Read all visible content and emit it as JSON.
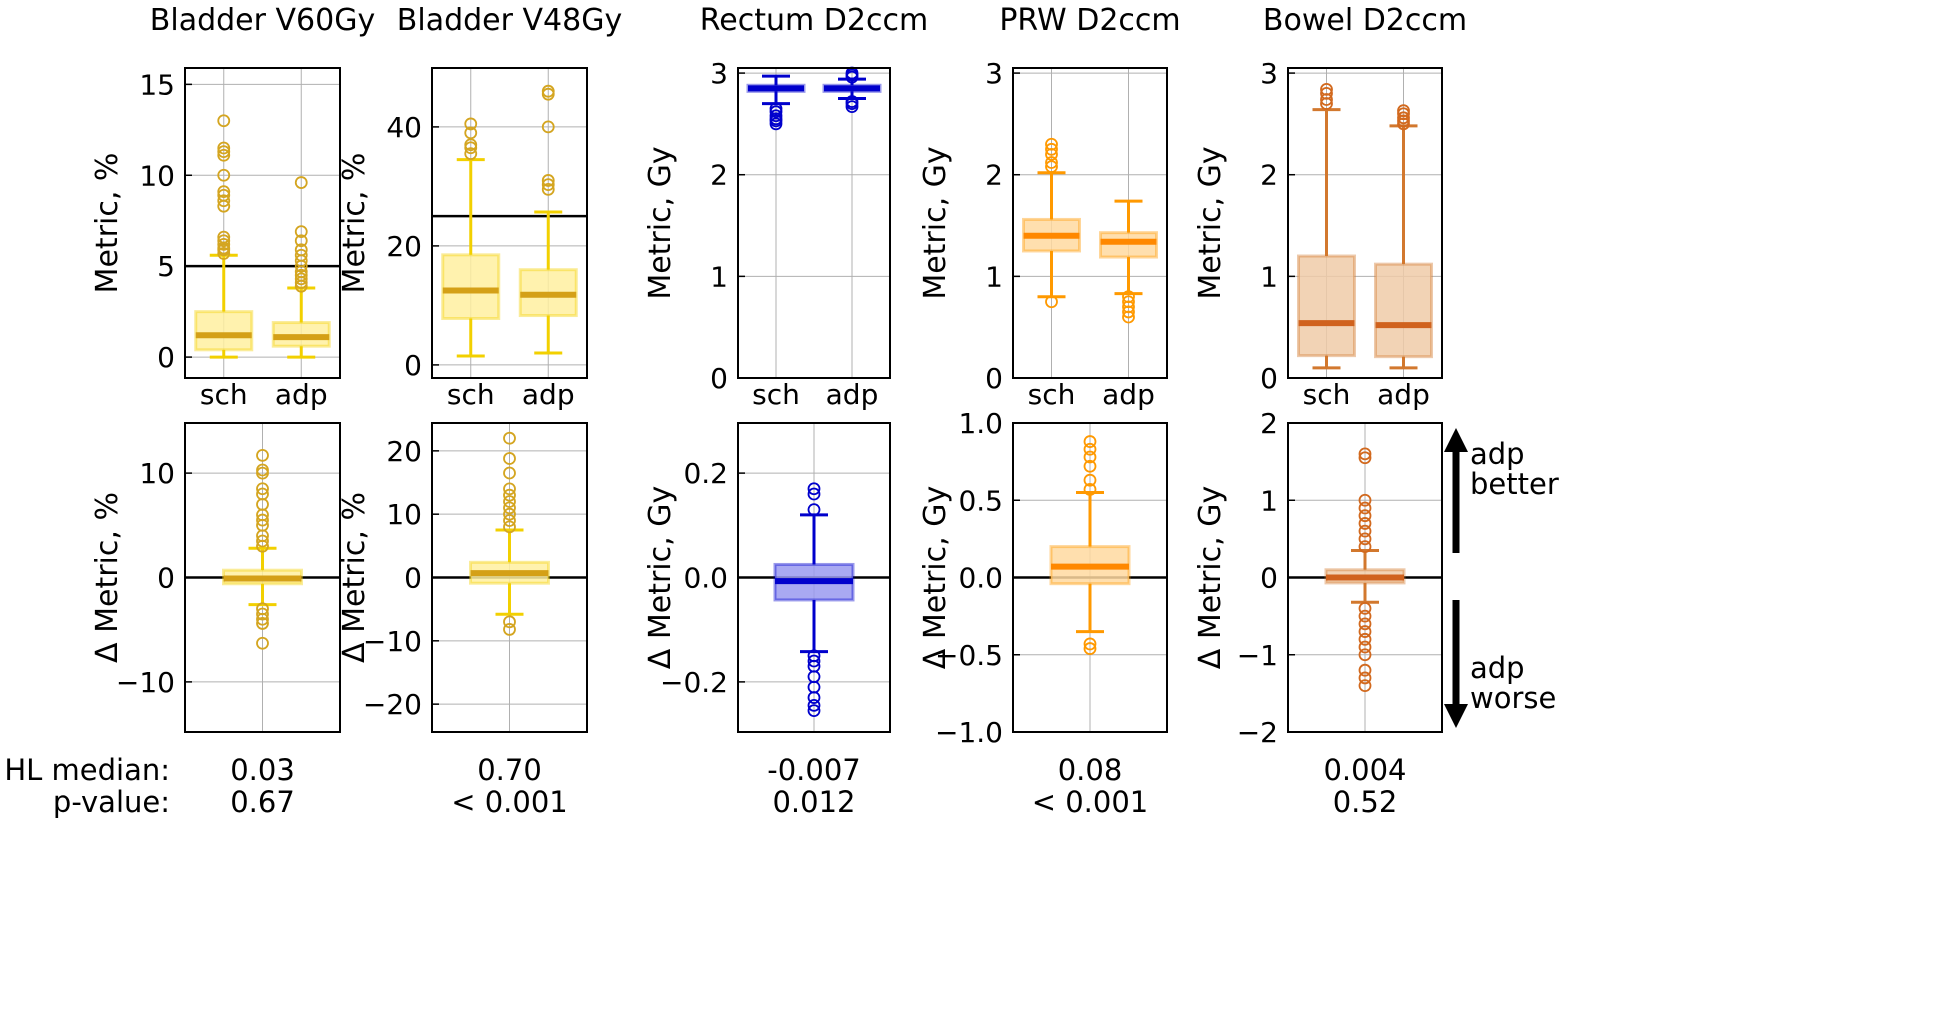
{
  "chart_data": [
    {
      "type": "box",
      "title": "Bladder V60Gy",
      "colors": {
        "line": "#f2d000",
        "fill": "#fff0a0",
        "median": "#d4a017",
        "flier": "#d4a520"
      },
      "top": {
        "ylabel": "Metric, %",
        "ylim": [
          -1.15,
          15.9
        ],
        "yticks": [
          0,
          5,
          10,
          15
        ],
        "threshold": 5,
        "categories": [
          "sch",
          "adp"
        ],
        "boxes": [
          {
            "whislo": 0,
            "q1": 0.4,
            "med": 1.2,
            "q3": 2.5,
            "whishi": 5.6,
            "fliers": [
              5.7,
              5.9,
              6.0,
              6.2,
              6.4,
              6.6,
              8.3,
              8.6,
              8.9,
              9.1,
              10,
              11.1,
              11.3,
              11.5,
              13
            ]
          },
          {
            "whislo": 0,
            "q1": 0.6,
            "med": 1.1,
            "q3": 1.9,
            "whishi": 3.8,
            "fliers": [
              3.9,
              4.1,
              4.3,
              4.5,
              4.7,
              5.0,
              5.3,
              5.6,
              5.9,
              6.4,
              6.9,
              9.6
            ]
          }
        ]
      },
      "bottom": {
        "ylabel": "Δ Metric, %",
        "ylim": [
          -14.8,
          14.8
        ],
        "yticks": [
          -10,
          0,
          10
        ],
        "box": {
          "whislo": -2.6,
          "q1": -0.6,
          "med": -0.1,
          "q3": 0.7,
          "whishi": 2.8,
          "fliers": [
            3,
            3.5,
            4,
            5,
            5.5,
            6,
            7,
            8,
            8.5,
            10,
            10.3,
            11.7,
            -3,
            -3.5,
            -4,
            -4.4,
            -6.3
          ]
        }
      },
      "hl_median": "0.03",
      "p_value": "0.67"
    },
    {
      "type": "box",
      "title": "Bladder V48Gy",
      "colors": {
        "line": "#f2d000",
        "fill": "#fff0a0",
        "median": "#d4a017",
        "flier": "#d4a520"
      },
      "top": {
        "ylabel": "Metric, %",
        "ylim": [
          -2.2,
          49.9
        ],
        "yticks": [
          0,
          20,
          40
        ],
        "threshold": 25,
        "categories": [
          "sch",
          "adp"
        ],
        "boxes": [
          {
            "whislo": 1.5,
            "q1": 7.8,
            "med": 12.5,
            "q3": 18.5,
            "whishi": 34.5,
            "fliers": [
              35.5,
              36.5,
              37,
              39,
              40.5
            ]
          },
          {
            "whislo": 2,
            "q1": 8.3,
            "med": 11.8,
            "q3": 16,
            "whishi": 25.7,
            "fliers": [
              29.5,
              30.3,
              31,
              40,
              45.5,
              46
            ]
          }
        ]
      },
      "bottom": {
        "ylabel": "Δ Metric, %",
        "ylim": [
          -24.4,
          24.4
        ],
        "yticks": [
          -20,
          -10,
          0,
          10,
          20
        ],
        "box": {
          "whislo": -5.8,
          "q1": -0.9,
          "med": 0.7,
          "q3": 2.4,
          "whishi": 7.5,
          "fliers": [
            8,
            9,
            10,
            11,
            12,
            13,
            14,
            16.5,
            18.8,
            22,
            -7,
            -8.2
          ]
        }
      },
      "hl_median": "0.70",
      "p_value": "< 0.001"
    },
    {
      "type": "box",
      "title": "Rectum D2ccm",
      "colors": {
        "line": "#0000cc",
        "fill": "#9a9af0",
        "median": "#0000cc",
        "flier": "#0000cc"
      },
      "top": {
        "ylabel": "Metric, Gy",
        "ylim": [
          0,
          3.05
        ],
        "yticks": [
          0,
          1,
          2,
          3
        ],
        "threshold": null,
        "categories": [
          "sch",
          "adp"
        ],
        "boxes": [
          {
            "whislo": 2.7,
            "q1": 2.82,
            "med": 2.85,
            "q3": 2.88,
            "whishi": 2.97,
            "fliers": [
              2.5,
              2.53,
              2.55,
              2.58,
              2.62,
              2.65
            ]
          },
          {
            "whislo": 2.75,
            "q1": 2.82,
            "med": 2.85,
            "q3": 2.88,
            "whishi": 2.94,
            "fliers": [
              2.67,
              2.7,
              2.72,
              2.96,
              2.98,
              3.0
            ]
          }
        ]
      },
      "bottom": {
        "ylabel": "Δ Metric, Gy",
        "ylim": [
          -0.296,
          0.296
        ],
        "yticks": [
          -0.2,
          0.0,
          0.2
        ],
        "box": {
          "whislo": -0.142,
          "q1": -0.043,
          "med": -0.007,
          "q3": 0.025,
          "whishi": 0.12,
          "fliers": [
            0.13,
            0.16,
            0.17,
            -0.15,
            -0.16,
            -0.17,
            -0.19,
            -0.21,
            -0.23,
            -0.245,
            -0.255
          ]
        }
      },
      "hl_median": "-0.007",
      "p_value": "0.012"
    },
    {
      "type": "box",
      "title": "PRW D2ccm",
      "colors": {
        "line": "#ff9900",
        "fill": "#ffd9a0",
        "median": "#ff8800",
        "flier": "#ff9900"
      },
      "top": {
        "ylabel": "Metric, Gy",
        "ylim": [
          0,
          3.05
        ],
        "yticks": [
          0,
          1,
          2,
          3
        ],
        "threshold": null,
        "categories": [
          "sch",
          "adp"
        ],
        "boxes": [
          {
            "whislo": 0.8,
            "q1": 1.25,
            "med": 1.4,
            "q3": 1.56,
            "whishi": 2.02,
            "fliers": [
              0.75,
              2.08,
              2.12,
              2.2,
              2.25,
              2.3
            ]
          },
          {
            "whislo": 0.83,
            "q1": 1.19,
            "med": 1.34,
            "q3": 1.43,
            "whishi": 1.74,
            "fliers": [
              0.6,
              0.65,
              0.7,
              0.75,
              0.8
            ]
          }
        ]
      },
      "bottom": {
        "ylabel": "Δ Metric, Gy",
        "ylim": [
          -1,
          1
        ],
        "yticks": [
          -1.0,
          -0.5,
          0.0,
          0.5,
          1.0
        ],
        "box": {
          "whislo": -0.35,
          "q1": -0.04,
          "med": 0.07,
          "q3": 0.2,
          "whishi": 0.55,
          "fliers": [
            0.57,
            0.63,
            0.72,
            0.78,
            0.83,
            0.88,
            -0.43,
            -0.46
          ]
        }
      },
      "hl_median": "0.08",
      "p_value": "< 0.001"
    },
    {
      "type": "box",
      "title": "Bowel D2ccm",
      "colors": {
        "line": "#d2782e",
        "fill": "#f0cba8",
        "median": "#d0621e",
        "flier": "#d2691e"
      },
      "top": {
        "ylabel": "Metric, Gy",
        "ylim": [
          0,
          3.05
        ],
        "yticks": [
          0,
          1,
          2,
          3
        ],
        "threshold": null,
        "categories": [
          "sch",
          "adp"
        ],
        "boxes": [
          {
            "whislo": 0.1,
            "q1": 0.22,
            "med": 0.54,
            "q3": 1.2,
            "whishi": 2.64,
            "fliers": [
              2.7,
              2.74,
              2.8,
              2.84
            ]
          },
          {
            "whislo": 0.1,
            "q1": 0.21,
            "med": 0.52,
            "q3": 1.12,
            "whishi": 2.48,
            "fliers": [
              2.5,
              2.53,
              2.56,
              2.6,
              2.63
            ]
          }
        ]
      },
      "bottom": {
        "ylabel": "Δ Metric, Gy",
        "ylim": [
          -2,
          2
        ],
        "yticks": [
          -2,
          -1,
          0,
          1,
          2
        ],
        "box": {
          "whislo": -0.32,
          "q1": -0.07,
          "med": 0,
          "q3": 0.1,
          "whishi": 0.35,
          "fliers": [
            0.4,
            0.5,
            0.6,
            0.7,
            0.8,
            0.9,
            1.0,
            1.55,
            1.6,
            -0.4,
            -0.5,
            -0.6,
            -0.7,
            -0.8,
            -0.9,
            -1.0,
            -1.2,
            -1.3,
            -1.4
          ]
        }
      },
      "hl_median": "0.004",
      "p_value": "0.52"
    }
  ],
  "row_labels": {
    "hl_median": "HL median:",
    "p_value": "p-value:"
  },
  "annotations": {
    "better_1": "adp",
    "better_2": "better",
    "worse_1": "adp",
    "worse_2": "worse"
  }
}
